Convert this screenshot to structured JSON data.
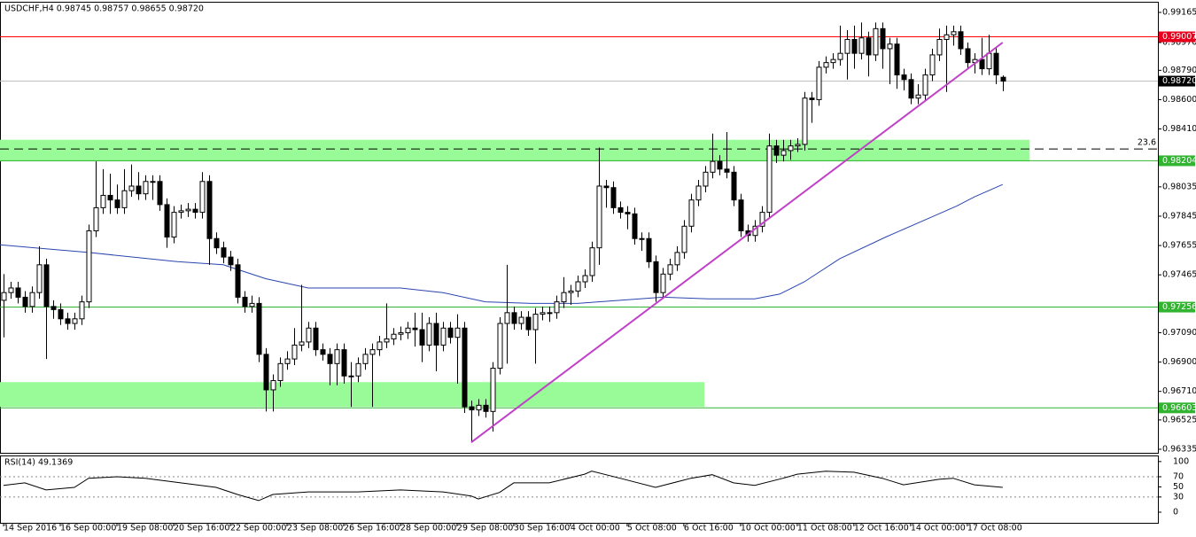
{
  "chart_data": {
    "type": "candlestick",
    "title": "USDCHF,H4  0.98745 0.98757 0.98655 0.98720",
    "xlim": [
      -0.5,
      162.9
    ],
    "ylim": [
      0.96312,
      0.99234
    ],
    "yticks": [
      0.99165,
      {
        "value": 0.9897,
        "label": "0.98970"
      },
      {
        "value": 0.9879,
        "label": "0.98790"
      },
      {
        "value": 0.986,
        "label": "0.98600"
      },
      {
        "value": 0.9841,
        "label": "0.98410"
      },
      0.98035,
      0.97845,
      0.97655,
      0.97465,
      {
        "value": 0.9709,
        "label": "0.97090"
      },
      {
        "value": 0.969,
        "label": "0.96900"
      },
      {
        "value": 0.9671,
        "label": "0.96710"
      },
      0.96525,
      0.96335
    ],
    "xticks": [
      {
        "value": 0,
        "label": "14 Sep 2016"
      },
      {
        "value": 8,
        "label": "16 Sep 00:00"
      },
      {
        "value": 16,
        "label": "19 Sep 08:00"
      },
      {
        "value": 24,
        "label": "20 Sep 16:00"
      },
      {
        "value": 32,
        "label": "22 Sep 00:00"
      },
      {
        "value": 40,
        "label": "23 Sep 08:00"
      },
      {
        "value": 48,
        "label": "26 Sep 16:00"
      },
      {
        "value": 56,
        "label": "28 Sep 00:00"
      },
      {
        "value": 64,
        "label": "29 Sep 08:00"
      },
      {
        "value": 72,
        "label": "30 Sep 16:00"
      },
      {
        "value": 80,
        "label": "4 Oct 00:00"
      },
      {
        "value": 88,
        "label": "5 Oct 08:00"
      },
      {
        "value": 96,
        "label": "6 Oct 16:00"
      },
      {
        "value": 104,
        "label": "10 Oct 00:00"
      },
      {
        "value": 112,
        "label": "11 Oct 08:00"
      },
      {
        "value": 120,
        "label": "12 Oct 16:00"
      },
      {
        "value": 128,
        "label": "14 Oct 00:00"
      },
      {
        "value": 136,
        "label": "17 Oct 08:00"
      }
    ],
    "up_color": "#ffffff",
    "down_color": "#000000",
    "ohlc": [
      [
        0.973,
        0.9747,
        0.9706,
        0.9735
      ],
      [
        0.9735,
        0.9742,
        0.9731,
        0.9738
      ],
      [
        0.9738,
        0.9742,
        0.9728,
        0.9732
      ],
      [
        0.9732,
        0.9736,
        0.9722,
        0.9726
      ],
      [
        0.9726,
        0.9739,
        0.9722,
        0.9735
      ],
      [
        0.9735,
        0.9765,
        0.9731,
        0.9753
      ],
      [
        0.9753,
        0.9757,
        0.9692,
        0.9726
      ],
      [
        0.9726,
        0.973,
        0.9718,
        0.9724
      ],
      [
        0.9724,
        0.9728,
        0.9714,
        0.9718
      ],
      [
        0.9718,
        0.9722,
        0.9711,
        0.9715
      ],
      [
        0.9715,
        0.9722,
        0.9711,
        0.9718
      ],
      [
        0.9718,
        0.9733,
        0.9714,
        0.9729
      ],
      [
        0.9729,
        0.9779,
        0.9725,
        0.9775
      ],
      [
        0.9775,
        0.982,
        0.9771,
        0.979
      ],
      [
        0.979,
        0.9815,
        0.9786,
        0.9798
      ],
      [
        0.9798,
        0.9812,
        0.9786,
        0.9795
      ],
      [
        0.9795,
        0.9805,
        0.9786,
        0.979
      ],
      [
        0.979,
        0.9815,
        0.9786,
        0.9801
      ],
      [
        0.9801,
        0.9818,
        0.9797,
        0.9804
      ],
      [
        0.9804,
        0.9813,
        0.9795,
        0.9799
      ],
      [
        0.9799,
        0.9811,
        0.9795,
        0.9807
      ],
      [
        0.9807,
        0.9811,
        0.9795,
        0.9807
      ],
      [
        0.9807,
        0.9811,
        0.9788,
        0.9792
      ],
      [
        0.9792,
        0.9796,
        0.9764,
        0.9771
      ],
      [
        0.9771,
        0.9791,
        0.9767,
        0.9787
      ],
      [
        0.9787,
        0.9792,
        0.9783,
        0.9788
      ],
      [
        0.9788,
        0.9793,
        0.9784,
        0.9789
      ],
      [
        0.9789,
        0.9793,
        0.9783,
        0.9787
      ],
      [
        0.9787,
        0.9813,
        0.9783,
        0.9807
      ],
      [
        0.9807,
        0.9811,
        0.9753,
        0.977
      ],
      [
        0.977,
        0.9774,
        0.976,
        0.9764
      ],
      [
        0.9764,
        0.9768,
        0.9754,
        0.9758
      ],
      [
        0.9758,
        0.9762,
        0.9749,
        0.9753
      ],
      [
        0.9753,
        0.9757,
        0.9728,
        0.9732
      ],
      [
        0.9732,
        0.9736,
        0.9722,
        0.9726
      ],
      [
        0.9726,
        0.9733,
        0.9722,
        0.9728
      ],
      [
        0.9728,
        0.9732,
        0.969,
        0.9695
      ],
      [
        0.9695,
        0.9699,
        0.9658,
        0.9672
      ],
      [
        0.9672,
        0.9682,
        0.9658,
        0.9678
      ],
      [
        0.9678,
        0.9693,
        0.9674,
        0.9689
      ],
      [
        0.9689,
        0.9697,
        0.9685,
        0.9692
      ],
      [
        0.9692,
        0.9712,
        0.9688,
        0.9701
      ],
      [
        0.9701,
        0.974,
        0.9697,
        0.9703
      ],
      [
        0.9703,
        0.9716,
        0.9699,
        0.9712
      ],
      [
        0.9712,
        0.9716,
        0.9694,
        0.9698
      ],
      [
        0.9698,
        0.9702,
        0.9691,
        0.9695
      ],
      [
        0.9695,
        0.9699,
        0.9675,
        0.9689
      ],
      [
        0.9689,
        0.9702,
        0.9675,
        0.9698
      ],
      [
        0.9698,
        0.9702,
        0.9676,
        0.9681
      ],
      [
        0.9681,
        0.969,
        0.9661,
        0.9681
      ],
      [
        0.9681,
        0.9693,
        0.9677,
        0.9689
      ],
      [
        0.9689,
        0.9699,
        0.9685,
        0.9695
      ],
      [
        0.9695,
        0.9702,
        0.9661,
        0.9698
      ],
      [
        0.9698,
        0.9707,
        0.9694,
        0.9703
      ],
      [
        0.9703,
        0.9728,
        0.9699,
        0.9705
      ],
      [
        0.9705,
        0.9712,
        0.9701,
        0.9708
      ],
      [
        0.9708,
        0.9713,
        0.9704,
        0.9709
      ],
      [
        0.9709,
        0.9716,
        0.9705,
        0.9712
      ],
      [
        0.9712,
        0.9722,
        0.97,
        0.9711
      ],
      [
        0.9711,
        0.9722,
        0.969,
        0.9701
      ],
      [
        0.9701,
        0.9719,
        0.9697,
        0.9715
      ],
      [
        0.9715,
        0.9722,
        0.9684,
        0.9701
      ],
      [
        0.9701,
        0.9716,
        0.9697,
        0.9712
      ],
      [
        0.9712,
        0.9716,
        0.9702,
        0.9706
      ],
      [
        0.9706,
        0.9721,
        0.9676,
        0.9712
      ],
      [
        0.9712,
        0.9716,
        0.9657,
        0.9661
      ],
      [
        0.9661,
        0.9665,
        0.9638,
        0.9659
      ],
      [
        0.9659,
        0.9666,
        0.9655,
        0.9662
      ],
      [
        0.9662,
        0.9666,
        0.9654,
        0.9658
      ],
      [
        0.9658,
        0.969,
        0.9645,
        0.9686
      ],
      [
        0.9686,
        0.9719,
        0.9682,
        0.9715
      ],
      [
        0.9715,
        0.9753,
        0.9689,
        0.9722
      ],
      [
        0.9722,
        0.9726,
        0.9711,
        0.9715
      ],
      [
        0.9715,
        0.9723,
        0.9711,
        0.9719
      ],
      [
        0.9719,
        0.9723,
        0.9707,
        0.9711
      ],
      [
        0.9711,
        0.9725,
        0.9689,
        0.9721
      ],
      [
        0.9721,
        0.9726,
        0.9717,
        0.9722
      ],
      [
        0.9722,
        0.9726,
        0.9716,
        0.9722
      ],
      [
        0.9722,
        0.9733,
        0.9718,
        0.9729
      ],
      [
        0.9729,
        0.9745,
        0.9725,
        0.9735
      ],
      [
        0.9735,
        0.974,
        0.9727,
        0.9736
      ],
      [
        0.9736,
        0.9746,
        0.9732,
        0.9742
      ],
      [
        0.9742,
        0.975,
        0.9738,
        0.9746
      ],
      [
        0.9746,
        0.9768,
        0.9742,
        0.9764
      ],
      [
        0.9764,
        0.9829,
        0.9753,
        0.9804
      ],
      [
        0.9804,
        0.9808,
        0.979,
        0.9803
      ],
      [
        0.9803,
        0.9807,
        0.9786,
        0.979
      ],
      [
        0.979,
        0.9794,
        0.9783,
        0.9787
      ],
      [
        0.9787,
        0.9791,
        0.9776,
        0.9786
      ],
      [
        0.9786,
        0.979,
        0.9766,
        0.977
      ],
      [
        0.977,
        0.9774,
        0.9762,
        0.977
      ],
      [
        0.977,
        0.9774,
        0.9751,
        0.9755
      ],
      [
        0.9755,
        0.9759,
        0.9729,
        0.9735
      ],
      [
        0.9735,
        0.9751,
        0.9731,
        0.9747
      ],
      [
        0.9747,
        0.9757,
        0.9743,
        0.9753
      ],
      [
        0.9753,
        0.9765,
        0.9749,
        0.9761
      ],
      [
        0.9761,
        0.9782,
        0.9757,
        0.9778
      ],
      [
        0.9778,
        0.9799,
        0.9774,
        0.9795
      ],
      [
        0.9795,
        0.9808,
        0.9791,
        0.9804
      ],
      [
        0.9804,
        0.9817,
        0.98,
        0.9813
      ],
      [
        0.9813,
        0.9838,
        0.9809,
        0.982
      ],
      [
        0.982,
        0.9824,
        0.9811,
        0.9815
      ],
      [
        0.9815,
        0.9839,
        0.9809,
        0.9813
      ],
      [
        0.9813,
        0.9817,
        0.9791,
        0.9795
      ],
      [
        0.9795,
        0.9799,
        0.9771,
        0.9775
      ],
      [
        0.9775,
        0.9779,
        0.9768,
        0.9772
      ],
      [
        0.9772,
        0.9782,
        0.9768,
        0.9778
      ],
      [
        0.9778,
        0.9791,
        0.9774,
        0.9787
      ],
      [
        0.9787,
        0.9838,
        0.9783,
        0.983
      ],
      [
        0.983,
        0.9834,
        0.9819,
        0.9824
      ],
      [
        0.9824,
        0.9834,
        0.982,
        0.9827
      ],
      [
        0.9827,
        0.9834,
        0.9821,
        0.983
      ],
      [
        0.983,
        0.9835,
        0.9826,
        0.9831
      ],
      [
        0.9831,
        0.9865,
        0.9827,
        0.9861
      ],
      [
        0.9861,
        0.9865,
        0.9845,
        0.986
      ],
      [
        0.986,
        0.9885,
        0.9856,
        0.9881
      ],
      [
        0.9881,
        0.9888,
        0.9877,
        0.9884
      ],
      [
        0.9884,
        0.989,
        0.988,
        0.9886
      ],
      [
        0.9886,
        0.9908,
        0.9882,
        0.989
      ],
      [
        0.989,
        0.9905,
        0.9873,
        0.9899
      ],
      [
        0.9899,
        0.9908,
        0.988,
        0.989
      ],
      [
        0.989,
        0.991,
        0.9886,
        0.99
      ],
      [
        0.99,
        0.9904,
        0.9875,
        0.9889
      ],
      [
        0.9889,
        0.991,
        0.9885,
        0.9906
      ],
      [
        0.9906,
        0.991,
        0.988,
        0.9893
      ],
      [
        0.9893,
        0.99,
        0.987,
        0.9896
      ],
      [
        0.9896,
        0.99,
        0.9867,
        0.9876
      ],
      [
        0.9876,
        0.988,
        0.9866,
        0.9873
      ],
      [
        0.9873,
        0.9877,
        0.9857,
        0.9861
      ],
      [
        0.9861,
        0.987,
        0.9857,
        0.9863
      ],
      [
        0.9863,
        0.988,
        0.9859,
        0.9876
      ],
      [
        0.9876,
        0.9893,
        0.9872,
        0.9889
      ],
      [
        0.9889,
        0.9906,
        0.9885,
        0.9899
      ],
      [
        0.9899,
        0.9908,
        0.9865,
        0.9902
      ],
      [
        0.9902,
        0.9908,
        0.9895,
        0.9904
      ],
      [
        0.9904,
        0.9908,
        0.9889,
        0.9893
      ],
      [
        0.9893,
        0.9897,
        0.988,
        0.9884
      ],
      [
        0.9884,
        0.989,
        0.9877,
        0.9886
      ],
      [
        0.9886,
        0.99,
        0.9876,
        0.988
      ],
      [
        0.988,
        0.9902,
        0.9876,
        0.989
      ],
      [
        0.989,
        0.9894,
        0.987,
        0.9876
      ],
      [
        0.98745,
        0.98757,
        0.98655,
        0.9872
      ]
    ],
    "moving_average": {
      "color": "#2a45b0",
      "x": [
        -0.5,
        4.5,
        12,
        24.5,
        31,
        37,
        43,
        49.5,
        56,
        62,
        68,
        74.5,
        81,
        87,
        93,
        99.5,
        106,
        109.5,
        113,
        118,
        124.5,
        131,
        134.5,
        137,
        141
      ],
      "values": [
        0.9766,
        0.9764,
        0.9761,
        0.9755,
        0.9753,
        0.9744,
        0.9738,
        0.9738,
        0.9738,
        0.9735,
        0.9729,
        0.9728,
        0.9728,
        0.973,
        0.9732,
        0.9731,
        0.9731,
        0.9734,
        0.9742,
        0.9757,
        0.9771,
        0.9784,
        0.9791,
        0.9797,
        0.9805
      ]
    },
    "trendline": {
      "color": "#c040c8",
      "x": [
        66,
        141
      ],
      "values": [
        0.9638,
        0.9897
      ]
    },
    "zones": [
      {
        "top": 0.9834,
        "bottom": 0.982,
        "x_end": 144.8,
        "color": "#98fb98"
      },
      {
        "top": 0.9677,
        "bottom": 0.9661,
        "x_end": 98.9,
        "color": "#98fb98"
      }
    ],
    "fib_level": {
      "value": 0.9828,
      "label": "23.6"
    },
    "price_lines": [
      {
        "price": 0.99007,
        "color": "#ff0000",
        "tag_color": "#e8001c"
      },
      {
        "price": {
          "value": 0.9872,
          "label": "0.98720"
        },
        "color": "#c0c0c0",
        "tag_color": "#000000"
      },
      {
        "price": 0.98204,
        "color": "#32b432",
        "tag_color": "#32b432"
      },
      {
        "price": 0.97256,
        "color": "#32b432",
        "tag_color": "#32b432"
      },
      {
        "price": 0.96603,
        "color": "#32b432",
        "tag_color": "#32b432"
      }
    ],
    "rsi": {
      "title": "RSI(14) 49.1369",
      "ylim": [
        -21,
        112
      ],
      "yticks": [
        100,
        70,
        50,
        30,
        0
      ],
      "levels": [
        70,
        30
      ],
      "color": "#000000",
      "x": [
        0,
        3,
        6,
        10,
        12,
        16,
        20,
        25,
        30,
        33,
        36,
        38,
        43,
        50,
        56,
        62,
        66,
        67,
        70,
        72,
        77,
        82,
        83,
        87,
        92,
        97,
        100,
        103,
        106,
        110,
        112,
        116,
        120,
        124,
        127,
        132,
        134,
        137,
        141
      ],
      "values": [
        53,
        58,
        44,
        49,
        67,
        70,
        67,
        58,
        49,
        35,
        23,
        35,
        40,
        40,
        44,
        40,
        32,
        26,
        39,
        58,
        58,
        75,
        81,
        67,
        49,
        67,
        74,
        58,
        53,
        67,
        75,
        81,
        79,
        67,
        54,
        65,
        67,
        54,
        49
      ]
    }
  }
}
